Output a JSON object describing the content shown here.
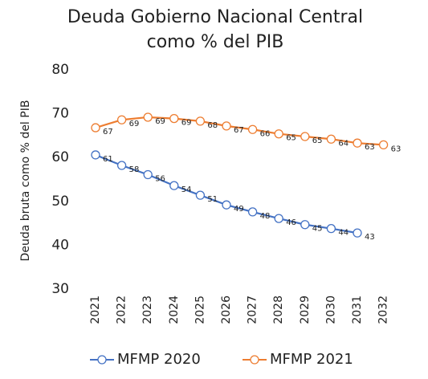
{
  "chart_data": {
    "type": "line",
    "title": [
      "Deuda Gobierno Nacional Central",
      "como % del PIB"
    ],
    "y_label": "Deuda bruta como % del PIB",
    "categories": [
      "2021",
      "2022",
      "2023",
      "2024",
      "2025",
      "2026",
      "2027",
      "2028",
      "2029",
      "2030",
      "2031",
      "2032"
    ],
    "series": [
      {
        "name": "MFMP 2020",
        "color": "#4472c4",
        "values": [
          60.6,
          58.2,
          56.1,
          53.6,
          51.4,
          49.2,
          47.6,
          46.1,
          44.7,
          43.8,
          42.8,
          null
        ],
        "value_labels": [
          "61",
          "58",
          "56",
          "54",
          "51",
          "49",
          "48",
          "46",
          "45",
          "44",
          "43",
          null
        ]
      },
      {
        "name": "MFMP 2021",
        "color": "#ed7d31",
        "values": [
          66.8,
          68.6,
          69.2,
          68.9,
          68.3,
          67.2,
          66.4,
          65.4,
          64.8,
          64.2,
          63.3,
          62.9
        ],
        "value_labels": [
          "67",
          "69",
          "69",
          "69",
          "68",
          "67",
          "66",
          "65",
          "65",
          "64",
          "63",
          "63"
        ]
      }
    ],
    "ylim": [
      30,
      80
    ],
    "yticks": [
      30,
      40,
      50,
      60,
      70,
      80
    ],
    "grid": false,
    "legend": "bottom"
  }
}
